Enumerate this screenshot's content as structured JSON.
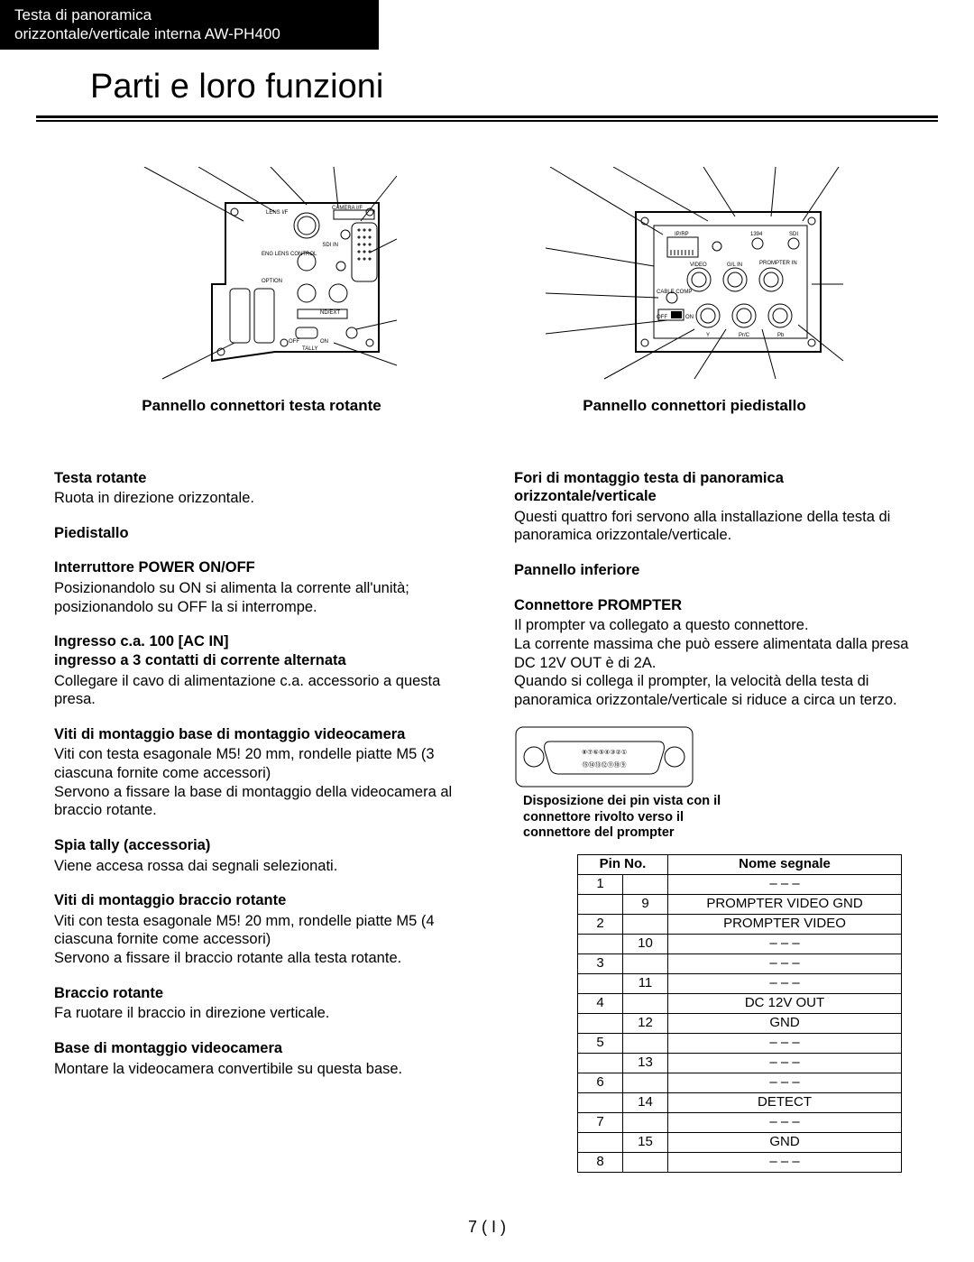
{
  "header": {
    "line1": "Testa di panoramica",
    "line2": "orizzontale/verticale interna  AW-PH400"
  },
  "title": "Parti e loro funzioni",
  "diagrams": {
    "left_caption": "Pannello connettori testa rotante",
    "right_caption": "Pannello connettori piedistallo",
    "left_labels": {
      "lens_if": "LENS I/F",
      "camera_if": "CAMERA I/F",
      "sdi_in": "SDI IN",
      "eng_lens": "ENG LENS CONTROL",
      "option": "OPTION",
      "nd_ext": "ND/EXT",
      "off": "OFF",
      "on": "ON",
      "tally": "TALLY"
    },
    "right_labels": {
      "ip_rp": "IP/RP",
      "n1394": "1394",
      "sdi": "SDI",
      "video": "VIDEO",
      "glin": "G/L IN",
      "prompter": "PROMPTER IN",
      "cable_comp": "CABLE COMP",
      "off": "OFF",
      "on": "ON",
      "y": "Y",
      "prc": "Pr/C",
      "pb": "Pb"
    }
  },
  "left_col": [
    {
      "title": "Testa rotante",
      "body": "Ruota in direzione orizzontale."
    },
    {
      "title": "Piedistallo",
      "body": ""
    },
    {
      "title": "Interruttore POWER ON/OFF",
      "body": "Posizionandolo su ON si alimenta la corrente all'unità; posizionandolo su OFF la si interrompe."
    },
    {
      "title": "Ingresso c.a. 100 [AC IN]\ningresso a 3 contatti di corrente alternata",
      "body": "Collegare il cavo di alimentazione c.a. accessorio a questa presa."
    },
    {
      "title": "Viti di montaggio base di montaggio videocamera",
      "body": "Viti con testa esagonale M5!  20 mm, rondelle piatte M5 (3 ciascuna fornite come accessori)\nServono a fissare la base di montaggio della videocamera al braccio rotante."
    },
    {
      "title": "Spia tally (accessoria)",
      "body": "Viene accesa rossa dai segnali selezionati."
    },
    {
      "title": "Viti di montaggio braccio rotante",
      "body": "Viti con testa esagonale M5!  20 mm, rondelle piatte M5 (4 ciascuna fornite come accessori)\nServono a fissare il braccio rotante alla testa rotante."
    },
    {
      "title": "Braccio rotante",
      "body": "Fa ruotare il braccio in direzione verticale."
    },
    {
      "title": "Base di montaggio videocamera",
      "body": "Montare la videocamera convertibile su questa base."
    }
  ],
  "right_col": {
    "sec1_title": "Fori di montaggio testa di panoramica orizzontale/verticale",
    "sec1_body": "Questi quattro fori servono alla installazione della testa di panoramica orizzontale/verticale.",
    "sec2_title": "Pannello inferiore",
    "sec3_title": "Connettore PROMPTER",
    "sec3_body": "Il prompter va collegato a questo connettore.\nLa corrente massima che può essere alimentata dalla presa DC 12V OUT è di 2A.\nQuando si collega il prompter, la velocità della testa di panoramica orizzontale/verticale si riduce a circa un terzo.",
    "pin_caption": "Disposizione dei pin vista con il connettore rivolto verso il connettore del prompter",
    "pin_numbers_top": [
      "⑧",
      "⑦",
      "⑥",
      "⑤",
      "④",
      "③",
      "②",
      "①"
    ],
    "pin_numbers_bottom": [
      "⑮",
      "⑭",
      "⑬",
      "⑫",
      "⑪",
      "⑩",
      "⑨"
    ],
    "table": {
      "headers": [
        "Pin No.",
        "Nome segnale"
      ],
      "rows": [
        [
          "1",
          "",
          "– – –"
        ],
        [
          "",
          "9",
          "PROMPTER VIDEO GND"
        ],
        [
          "2",
          "",
          "PROMPTER VIDEO"
        ],
        [
          "",
          "10",
          "– – –"
        ],
        [
          "3",
          "",
          "– – –"
        ],
        [
          "",
          "11",
          "– – –"
        ],
        [
          "4",
          "",
          "DC 12V OUT"
        ],
        [
          "",
          "12",
          "GND"
        ],
        [
          "5",
          "",
          "– – –"
        ],
        [
          "",
          "13",
          "– – –"
        ],
        [
          "6",
          "",
          "– – –"
        ],
        [
          "",
          "14",
          "DETECT"
        ],
        [
          "7",
          "",
          "– – –"
        ],
        [
          "",
          "15",
          "GND"
        ],
        [
          "8",
          "",
          "– – –"
        ]
      ]
    }
  },
  "page_number": "7 ( I )",
  "colors": {
    "bg": "#ffffff",
    "text": "#000000",
    "header_bg": "#000000",
    "header_text": "#ffffff"
  }
}
